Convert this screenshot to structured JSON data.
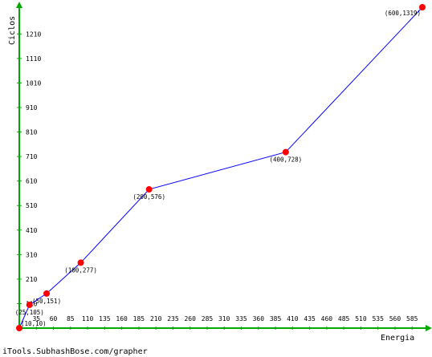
{
  "chart_data": {
    "type": "line",
    "xlabel": "Energia",
    "ylabel": "Ciclos",
    "xlim": [
      10,
      600
    ],
    "ylim": [
      10,
      1319
    ],
    "x_ticks": [
      10,
      35,
      60,
      85,
      110,
      135,
      160,
      185,
      210,
      235,
      260,
      285,
      310,
      335,
      360,
      385,
      410,
      435,
      460,
      485,
      510,
      535,
      560,
      585
    ],
    "y_ticks": [
      110,
      210,
      310,
      410,
      510,
      610,
      710,
      810,
      910,
      1010,
      1110,
      1210
    ],
    "series": [
      {
        "color": "#0000ff",
        "marker_color": "#ff0000",
        "points": [
          {
            "x": 10,
            "y": 10,
            "label": "(10,10)"
          },
          {
            "x": 25,
            "y": 105,
            "label": "(25,105)"
          },
          {
            "x": 50,
            "y": 151,
            "label": "(50,151)"
          },
          {
            "x": 100,
            "y": 277,
            "label": "(100,277)"
          },
          {
            "x": 200,
            "y": 576,
            "label": "(200,576)"
          },
          {
            "x": 400,
            "y": 728,
            "label": "(400,728)"
          },
          {
            "x": 600,
            "y": 1319,
            "label": "(600,1319)"
          }
        ]
      }
    ],
    "axis_color": "#00aa00",
    "grid": false
  },
  "footer": "iTools.SubhashBose.com/grapher"
}
